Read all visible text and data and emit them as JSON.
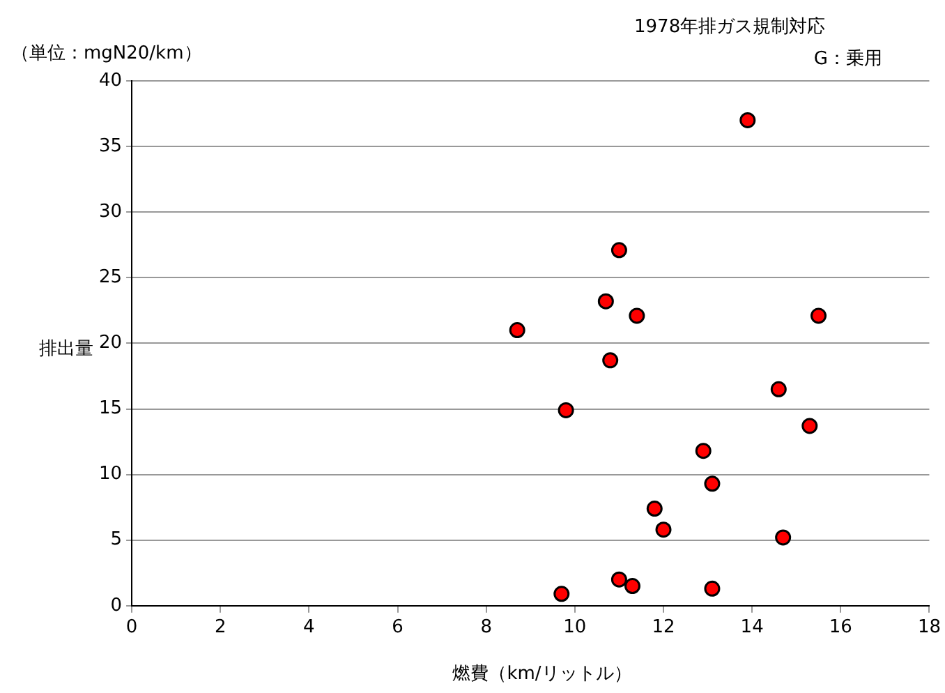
{
  "chart_data": {
    "type": "scatter",
    "title": "1978年排ガス規制対応",
    "subtitle": "G：乗用",
    "xlabel": "燃費（km/リットル）",
    "ylabel": "排出量",
    "annotations": [
      "（単位：mgN20/km）"
    ],
    "x": [
      13.9,
      11.0,
      10.7,
      11.4,
      15.5,
      8.7,
      10.8,
      14.6,
      9.8,
      15.3,
      12.9,
      13.1,
      11.8,
      12.0,
      14.7,
      11.0,
      11.3,
      13.1,
      9.7
    ],
    "series": [
      {
        "color": "#ff0000",
        "values": [
          37.0,
          27.1,
          23.2,
          22.1,
          22.1,
          21.0,
          18.7,
          16.5,
          14.9,
          13.7,
          11.8,
          9.3,
          7.4,
          5.8,
          5.2,
          2.0,
          1.5,
          1.3,
          0.9
        ]
      }
    ],
    "xlim": [
      0,
      18
    ],
    "xticks": [
      0,
      2,
      4,
      6,
      8,
      10,
      12,
      14,
      16,
      18
    ],
    "ylim": [
      0,
      40
    ],
    "yticks": [
      0,
      5,
      10,
      15,
      20,
      25,
      30,
      35,
      40
    ],
    "grid": "y",
    "legend": false,
    "marker": "circle"
  }
}
